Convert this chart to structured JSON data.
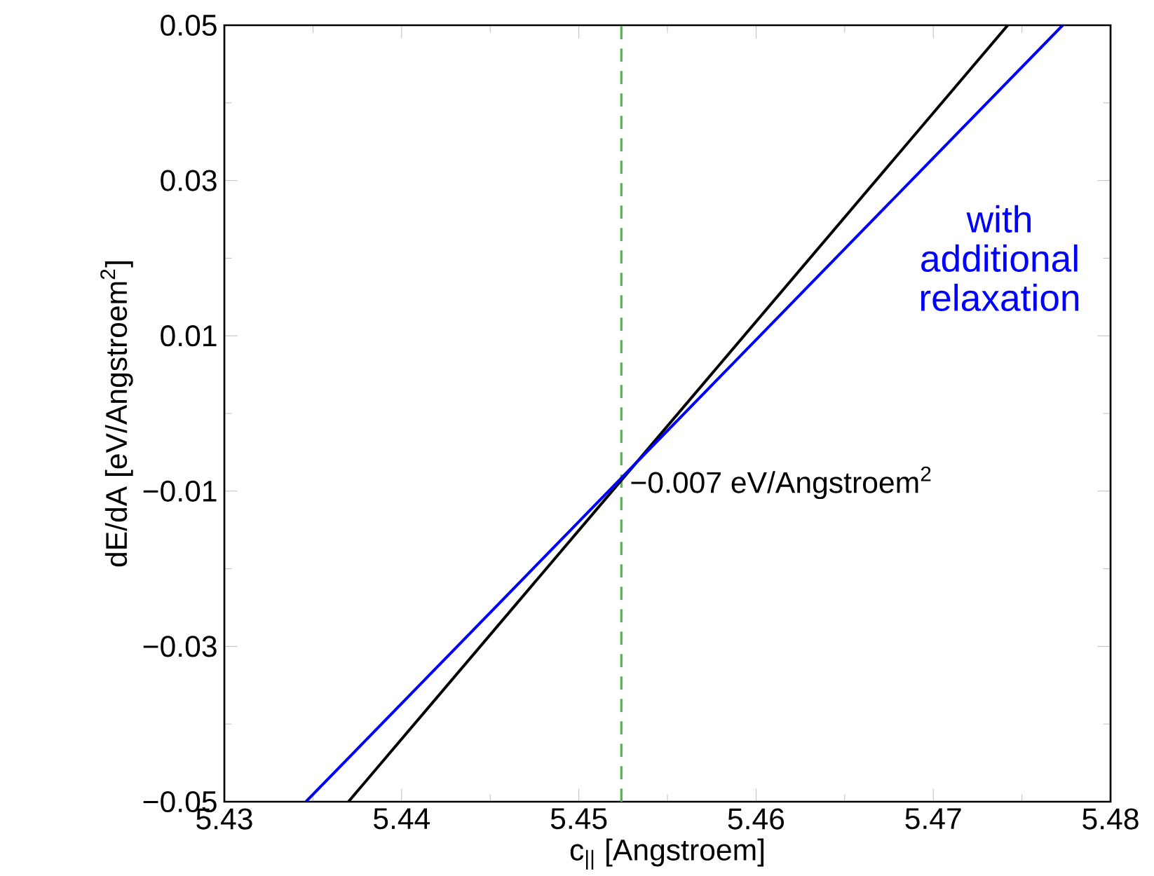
{
  "chart_data": {
    "type": "line",
    "xlabel": "c$_{||}$  [Angstroem]",
    "ylabel": "dE/dA  [eV/Angstroem$^{2}$]",
    "xlim": [
      5.43,
      5.48
    ],
    "xticks": [
      5.43,
      5.44,
      5.45,
      5.46,
      5.47,
      5.48
    ],
    "ylim": [
      -0.05,
      0.05
    ],
    "yticks": [
      {
        "value": -0.05,
        "label": "−0.05"
      },
      {
        "value": -0.03,
        "label": "−0.03"
      },
      {
        "value": -0.01,
        "label": "−0.01"
      },
      0.01,
      0.03,
      0.05
    ],
    "series": [
      {
        "color": "#000000",
        "x": [
          5.437,
          5.4742
        ],
        "values": [
          -0.05,
          0.05
        ]
      },
      {
        "name": "with additional relaxation",
        "color": "#0000ff",
        "x": [
          5.4346,
          5.4773
        ],
        "values": [
          -0.05,
          0.05
        ]
      }
    ],
    "ref_lines": [
      {
        "axis": "x",
        "value": 5.4524,
        "color": "#4cb84c",
        "line_style": "dashed"
      }
    ],
    "annotations": [
      {
        "text": "−0.007 eV/Angstroem$^{2}$",
        "x": 5.4524,
        "y": -0.007
      }
    ]
  }
}
